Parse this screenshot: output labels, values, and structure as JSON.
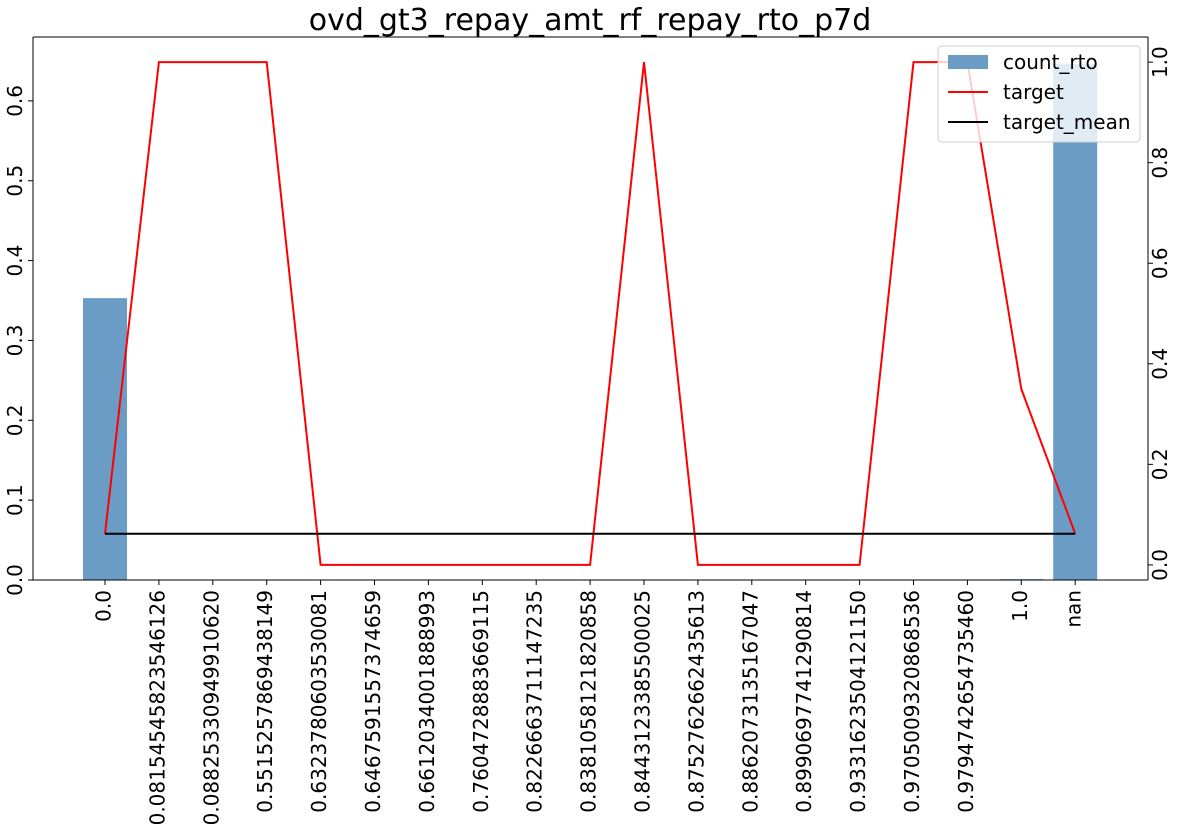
{
  "chart_data": {
    "type": "bar",
    "title": "ovd_gt3_repay_amt_rf_repay_rto_p7d",
    "categories": [
      "0.0",
      "0.08154545823546126",
      "0.08825330949910620",
      "0.5515257869438149",
      "0.6323780603530081",
      "0.6467591557374659",
      "0.6612034001888993",
      "0.7604728883669115",
      "0.8226663711147235",
      "0.8381058121820858",
      "0.8443123385500025",
      "0.8752762662435613",
      "0.8862073135167047",
      "0.8990697741290814",
      "0.9331623504121150",
      "0.9705009320868536",
      "0.9794742654735460",
      "1.0",
      "nan"
    ],
    "series": [
      {
        "name": "count_rto",
        "axis": "left",
        "kind": "bar",
        "color": "#6a9cc6",
        "values": [
          0.353,
          0.0,
          0.0,
          0.0,
          0.0,
          0.0,
          0.0,
          0.0,
          0.0,
          0.0,
          0.0,
          0.0,
          0.0,
          0.0,
          0.0,
          0.0,
          0.0,
          0.001,
          0.646
        ]
      },
      {
        "name": "target",
        "axis": "right",
        "kind": "line",
        "color": "#ff0000",
        "values": [
          0.062,
          1.0,
          1.0,
          1.0,
          0.0,
          0.0,
          0.0,
          0.0,
          0.0,
          0.0,
          1.0,
          0.0,
          0.0,
          0.0,
          0.0,
          1.0,
          1.0,
          0.35,
          0.062
        ]
      },
      {
        "name": "target_mean",
        "axis": "right",
        "kind": "line",
        "color": "#000000",
        "values": [
          0.062,
          0.062,
          0.062,
          0.062,
          0.062,
          0.062,
          0.062,
          0.062,
          0.062,
          0.062,
          0.062,
          0.062,
          0.062,
          0.062,
          0.062,
          0.062,
          0.062,
          0.062,
          0.062
        ]
      }
    ],
    "y_left": {
      "ylim": [
        0,
        0.68
      ],
      "ticks": [
        "0.0",
        "0.1",
        "0.2",
        "0.3",
        "0.4",
        "0.5",
        "0.6"
      ]
    },
    "y_right": {
      "ylim": [
        -0.03,
        1.05
      ],
      "ticks": [
        "0.0",
        "0.2",
        "0.4",
        "0.6",
        "0.8",
        "1.0"
      ]
    },
    "grid": false,
    "legend_position": "top-right",
    "legend": [
      "count_rto",
      "target",
      "target_mean"
    ]
  }
}
